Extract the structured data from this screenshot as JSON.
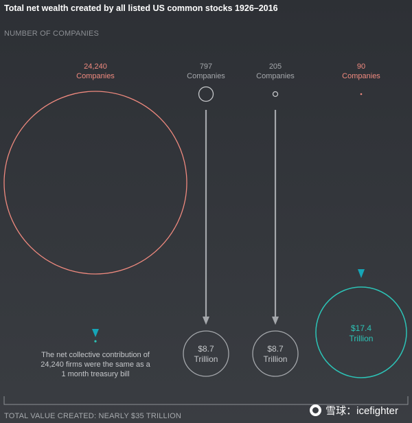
{
  "title": "Total net wealth created by all listed US common stocks 1926–2016",
  "subtitle": "NUMBER OF COMPANIES",
  "footer": "TOTAL VALUE CREATED: NEARLY $35 TRILLION",
  "watermark": "雪球：icefighter",
  "note_lines": [
    "The net collective contribution of",
    "24,240 firms were the same as a",
    "1 month treasury bill"
  ],
  "colors": {
    "salmon": "#f08a7f",
    "teal": "#2cc4b7",
    "gray": "#a5a8ac",
    "arrow_teal": "#16a5b7"
  },
  "chart_data": {
    "type": "bubble",
    "title": "Total net wealth created by all listed US common stocks 1926–2016",
    "groups": [
      {
        "count": 24240,
        "count_label": "24,240",
        "unit": "Companies",
        "value_trillion": 0,
        "value_label": ""
      },
      {
        "count": 797,
        "count_label": "797",
        "unit": "Companies",
        "value_trillion": 8.7,
        "value_label": "$8.7",
        "value_unit": "Trillion"
      },
      {
        "count": 205,
        "count_label": "205",
        "unit": "Companies",
        "value_trillion": 8.7,
        "value_label": "$8.7",
        "value_unit": "Trillion"
      },
      {
        "count": 90,
        "count_label": "90",
        "unit": "Companies",
        "value_trillion": 17.4,
        "value_label": "$17.4",
        "value_unit": "Trillion"
      }
    ],
    "total": "NEARLY $35 TRILLION"
  }
}
